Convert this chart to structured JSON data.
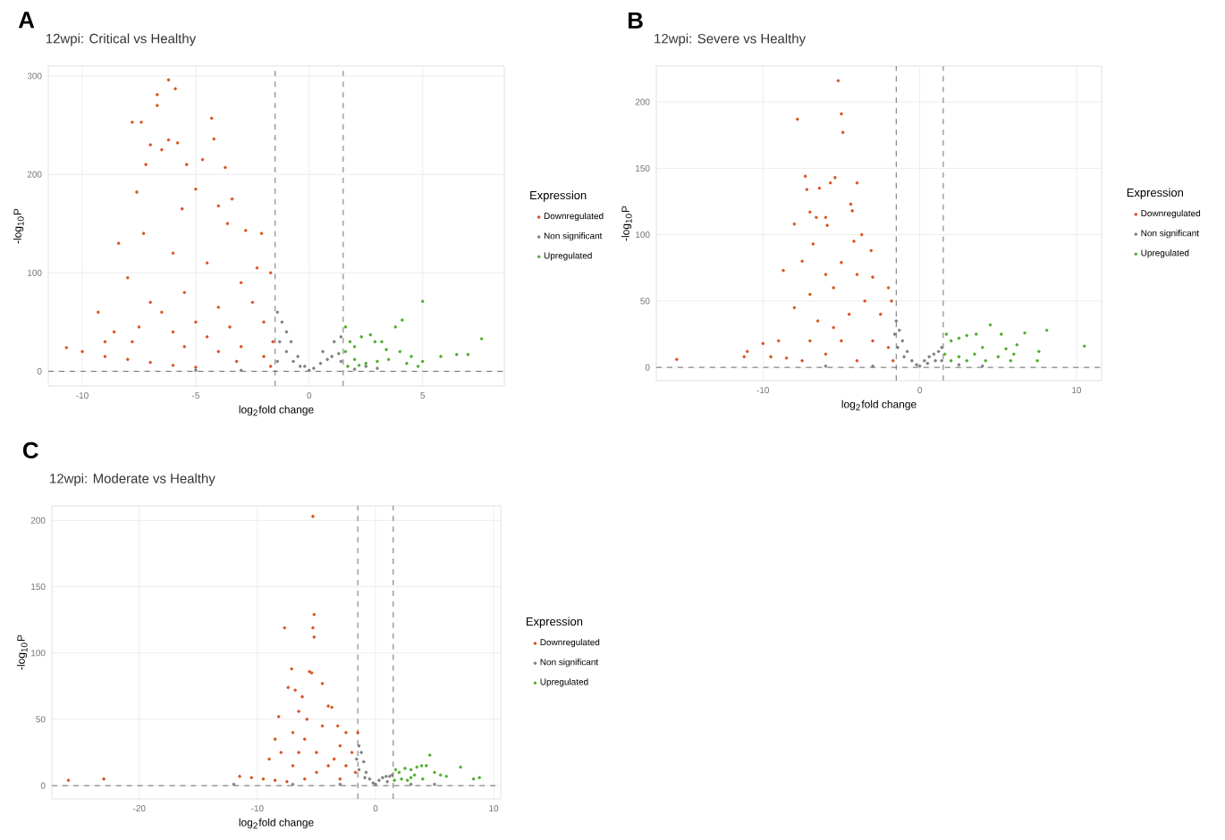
{
  "chart_data": [
    {
      "type": "scatter",
      "title": "12wpi: Critical vs Healthy",
      "xlabel": "log$_{2}$fold change",
      "ylabel": "-log$_{10}$P",
      "legend_title": "Expression",
      "annotations": [
        "A"
      ],
      "xlim": [
        -11.5,
        8.6
      ],
      "ylim": [
        -15,
        310
      ],
      "xticks": [
        -10,
        -5,
        0,
        5
      ],
      "yticks": [
        0,
        100,
        200,
        300
      ],
      "grid": true,
      "legend": "right",
      "marker": "circle",
      "ref_lines": [
        {
          "axis": "x",
          "value": -1.5,
          "line_style": "dashed"
        },
        {
          "axis": "x",
          "value": 1.5,
          "line_style": "dashed"
        },
        {
          "axis": "y",
          "value": 0,
          "line_style": "dashed"
        }
      ],
      "series": [
        {
          "name": "Downregulated",
          "color": "#d9531e",
          "x": [
            -6.2,
            -5.9,
            -6.7,
            -6.7,
            -7.8,
            -7.4,
            -4.3,
            -4.2,
            -6.2,
            -5.8,
            -7.0,
            -6.5,
            -5.4,
            -7.2,
            -3.7,
            -4.7,
            -7.6,
            -5.0,
            -4.0,
            -3.4,
            -5.6,
            -3.6,
            -2.8,
            -8.4,
            -7.3,
            -2.1,
            -1.7,
            -2.3,
            -9.3,
            -8.0,
            -6.0,
            -4.5,
            -3.0,
            -5.5,
            -7.0,
            -6.5,
            -4.0,
            -2.5,
            -8.6,
            -7.8,
            -6.0,
            -5.0,
            -3.5,
            -2.0,
            -1.6,
            -10.7,
            -10.0,
            -9.0,
            -8.0,
            -7.0,
            -6.0,
            -5.0,
            -4.0,
            -3.0,
            -2.0,
            -1.7,
            -5.5,
            -7.5,
            -9.0,
            -4.5,
            -3.2
          ],
          "values": [
            296,
            287,
            281,
            270,
            253,
            253,
            257,
            236,
            235,
            232,
            230,
            225,
            210,
            210,
            207,
            215,
            182,
            185,
            168,
            175,
            165,
            150,
            143,
            130,
            140,
            140,
            100,
            105,
            60,
            95,
            120,
            110,
            90,
            80,
            70,
            60,
            65,
            70,
            40,
            30,
            40,
            50,
            45,
            50,
            30,
            24,
            20,
            15,
            12,
            9,
            6,
            4,
            20,
            25,
            15,
            5,
            25,
            45,
            30,
            35,
            10
          ]
        },
        {
          "name": "Non significant",
          "color": "#7f7f7f",
          "x": [
            -1.4,
            -1.2,
            -1.0,
            -0.8,
            -0.5,
            -0.2,
            0.0,
            0.2,
            0.5,
            0.8,
            1.0,
            1.3,
            1.4,
            -1.3,
            -1.0,
            -0.7,
            -0.4,
            0.6,
            1.1,
            1.4,
            -1.4,
            2.0,
            3.0,
            -3.0,
            -5.0,
            2.5
          ],
          "values": [
            60,
            50,
            40,
            30,
            15,
            5,
            1,
            3,
            8,
            12,
            15,
            18,
            35,
            30,
            20,
            10,
            5,
            20,
            30,
            10,
            10,
            2,
            3,
            1,
            1,
            5
          ]
        },
        {
          "name": "Upregulated",
          "color": "#4cae2a",
          "x": [
            1.6,
            1.8,
            2.0,
            2.3,
            2.7,
            2.9,
            3.2,
            3.8,
            4.1,
            5.0,
            7.6,
            7.0,
            6.5,
            5.8,
            5.0,
            4.5,
            4.0,
            3.5,
            3.0,
            2.5,
            2.0,
            1.7,
            1.6,
            2.2,
            4.8,
            3.4,
            4.3
          ],
          "values": [
            45,
            30,
            25,
            35,
            37,
            30,
            30,
            45,
            52,
            71,
            33,
            17,
            17,
            15,
            10,
            15,
            20,
            12,
            10,
            8,
            12,
            5,
            20,
            6,
            5,
            22,
            8
          ]
        }
      ]
    },
    {
      "type": "scatter",
      "title": "12wpi: Severe vs Healthy",
      "xlabel": "log$_{2}$fold change",
      "ylabel": "-log$_{10}$P",
      "legend_title": "Expression",
      "annotations": [
        "B"
      ],
      "xlim": [
        -16.8,
        11.6
      ],
      "ylim": [
        -10,
        227
      ],
      "xticks": [
        -10,
        0,
        10
      ],
      "yticks": [
        0,
        50,
        100,
        150,
        200
      ],
      "grid": true,
      "legend": "right",
      "marker": "circle",
      "ref_lines": [
        {
          "axis": "x",
          "value": -1.5,
          "line_style": "dashed"
        },
        {
          "axis": "x",
          "value": 1.5,
          "line_style": "dashed"
        },
        {
          "axis": "y",
          "value": 0,
          "line_style": "dashed"
        }
      ],
      "series": [
        {
          "name": "Downregulated",
          "color": "#d9531e",
          "x": [
            -5.2,
            -5.0,
            -4.9,
            -7.8,
            -7.3,
            -5.4,
            -5.7,
            -4.0,
            -7.2,
            -6.4,
            -4.4,
            -4.3,
            -7.0,
            -6.6,
            -6.0,
            -5.9,
            -8.0,
            -3.7,
            -3.1,
            -4.2,
            -6.8,
            -8.7,
            -7.5,
            -5.0,
            -6.0,
            -4.0,
            -3.0,
            -2.0,
            -1.8,
            -7.0,
            -5.5,
            -3.5,
            -2.5,
            -8.0,
            -6.5,
            -4.5,
            -9.0,
            -10.0,
            -11.2,
            -11.0,
            -9.5,
            -8.5,
            -7.5,
            -6.0,
            -5.0,
            -3.0,
            -2.0,
            -1.7,
            -15.5,
            -4.0,
            -7.0,
            -5.5
          ],
          "values": [
            216,
            191,
            177,
            187,
            144,
            143,
            139,
            139,
            134,
            135,
            123,
            118,
            117,
            113,
            113,
            107,
            108,
            100,
            88,
            95,
            93,
            73,
            80,
            79,
            70,
            70,
            68,
            60,
            50,
            55,
            60,
            50,
            40,
            45,
            35,
            40,
            20,
            18,
            8,
            12,
            8,
            7,
            5,
            10,
            20,
            20,
            15,
            5,
            6,
            5,
            20,
            30
          ]
        },
        {
          "name": "Non significant",
          "color": "#7f7f7f",
          "x": [
            -1.5,
            -1.3,
            -1.1,
            -0.8,
            -0.5,
            -0.2,
            0.0,
            0.3,
            0.6,
            0.9,
            1.2,
            1.4,
            -1.4,
            -1.0,
            0.5,
            1.0,
            1.4,
            -3.0,
            -6.0,
            2.5,
            4.0,
            -1.6
          ],
          "values": [
            35,
            28,
            20,
            12,
            5,
            2,
            1,
            5,
            8,
            10,
            12,
            15,
            15,
            8,
            3,
            5,
            5,
            1,
            1,
            2,
            1,
            25
          ]
        },
        {
          "name": "Upregulated",
          "color": "#4cae2a",
          "x": [
            1.7,
            2.0,
            2.5,
            3.0,
            3.6,
            4.5,
            5.2,
            6.7,
            8.1,
            10.5,
            7.6,
            7.5,
            6.0,
            5.5,
            5.0,
            4.0,
            3.5,
            3.0,
            2.5,
            2.0,
            1.6,
            5.8,
            4.2,
            6.2
          ],
          "values": [
            25,
            20,
            22,
            24,
            25,
            32,
            25,
            26,
            28,
            16,
            12,
            5,
            10,
            14,
            8,
            15,
            10,
            5,
            8,
            5,
            10,
            5,
            5,
            17
          ]
        }
      ]
    },
    {
      "type": "scatter",
      "title": "12wpi: Moderate vs Healthy",
      "xlabel": "log$_{2}$fold change",
      "ylabel": "-log$_{10}$P",
      "legend_title": "Expression",
      "annotations": [
        "C"
      ],
      "xlim": [
        -27.4,
        10.6
      ],
      "ylim": [
        -10,
        211
      ],
      "xticks": [
        -20,
        -10,
        0,
        10
      ],
      "yticks": [
        0,
        50,
        100,
        150,
        200
      ],
      "grid": true,
      "legend": "right",
      "marker": "circle",
      "ref_lines": [
        {
          "axis": "x",
          "value": -1.5,
          "line_style": "dashed"
        },
        {
          "axis": "x",
          "value": 1.5,
          "line_style": "dashed"
        },
        {
          "axis": "y",
          "value": 0,
          "line_style": "dashed"
        }
      ],
      "series": [
        {
          "name": "Downregulated",
          "color": "#d9531e",
          "x": [
            -5.3,
            -5.2,
            -5.3,
            -5.2,
            -7.7,
            -7.1,
            -5.6,
            -5.4,
            -4.5,
            -7.4,
            -6.8,
            -6.2,
            -4.0,
            -3.7,
            -6.5,
            -8.2,
            -5.8,
            -3.2,
            -2.5,
            -1.5,
            -4.5,
            -7.0,
            -8.5,
            -6.0,
            -3.0,
            -2.0,
            -8.0,
            -9.0,
            -5.0,
            -7.0,
            -4.0,
            -2.5,
            -1.7,
            -11.5,
            -10.5,
            -9.5,
            -8.5,
            -7.5,
            -6.0,
            -3.0,
            -26.0,
            -23.0,
            -5.0,
            -6.5,
            -3.5
          ],
          "values": [
            203,
            129,
            119,
            112,
            119,
            88,
            86,
            85,
            77,
            74,
            72,
            67,
            60,
            59,
            56,
            52,
            50,
            45,
            40,
            40,
            45,
            40,
            35,
            35,
            30,
            25,
            25,
            20,
            25,
            15,
            15,
            15,
            10,
            7,
            6,
            5,
            4,
            3,
            5,
            5,
            4,
            5,
            10,
            25,
            20
          ]
        },
        {
          "name": "Non significant",
          "color": "#7f7f7f",
          "x": [
            -1.4,
            -1.2,
            -1.0,
            -0.8,
            -0.5,
            -0.2,
            0.0,
            0.3,
            0.6,
            0.9,
            1.2,
            1.4,
            -1.4,
            -0.9,
            1.0,
            -12.0,
            -3.0,
            -7.0,
            3.0,
            5.0,
            -1.6
          ],
          "values": [
            30,
            25,
            18,
            10,
            5,
            2,
            1,
            4,
            6,
            7,
            7,
            8,
            12,
            6,
            3,
            1,
            1,
            1,
            1,
            1,
            20
          ]
        },
        {
          "name": "Upregulated",
          "color": "#4cae2a",
          "x": [
            1.7,
            2.0,
            2.5,
            3.0,
            3.5,
            3.9,
            4.3,
            4.6,
            5.0,
            5.5,
            7.2,
            8.3,
            8.8,
            6.0,
            4.0,
            3.0,
            2.2,
            1.6,
            3.3,
            2.7
          ],
          "values": [
            12,
            10,
            13,
            12,
            14,
            15,
            15,
            23,
            10,
            8,
            14,
            5,
            6,
            7,
            5,
            6,
            5,
            4,
            8,
            4
          ]
        }
      ]
    }
  ]
}
